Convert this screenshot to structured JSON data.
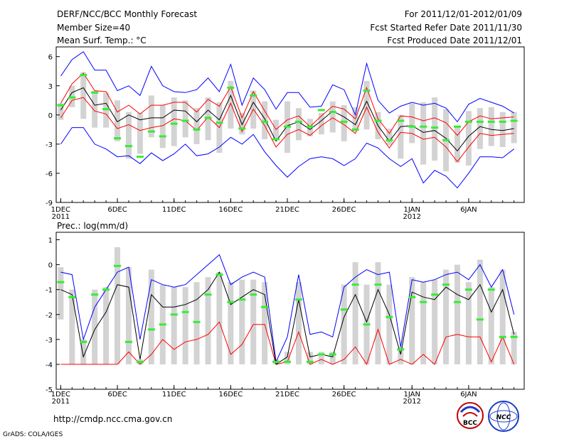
{
  "header": {
    "title": "DERF/NCC/BCC Monthly Forecast",
    "member_size": "Member Size=40",
    "variable": "Mean Surf. Temp.: °C",
    "period": "For 2011/12/01-2012/01/09",
    "fcst_started": "Fcst Started Refer Date 2011/11/30",
    "fcst_produced": "Fcst Produced Date 2011/12/01"
  },
  "footer": {
    "url": "http://cmdp.ncc.cma.gov.cn",
    "grads": "GrADS: COLA/IGES",
    "logo_bcc_text": "BCC",
    "logo_ncc_text": "NCC"
  },
  "colors": {
    "box": "#d3d3d3",
    "max": "#0000ff",
    "upper": "#ff0000",
    "mean": "#000000",
    "green": "#33ee33"
  },
  "chart_data": [
    {
      "type": "box-ensemble",
      "title": "Mean Surf. Temp.: °C",
      "ylim": [
        -9,
        7
      ],
      "yticks": [
        6,
        3,
        0,
        -3,
        -6,
        -9
      ],
      "xlabels": [
        {
          "day": 1,
          "label": "1DEC",
          "sub": "2011"
        },
        {
          "day": 6,
          "label": "6DEC"
        },
        {
          "day": 11,
          "label": "11DEC"
        },
        {
          "day": 16,
          "label": "16DEC"
        },
        {
          "day": 21,
          "label": "21DEC"
        },
        {
          "day": 26,
          "label": "26DEC"
        },
        {
          "day": 32,
          "label": "1JAN",
          "sub": "2012"
        },
        {
          "day": 37,
          "label": "6JAN"
        }
      ],
      "series": [
        {
          "name": "max",
          "values": [
            -3.0,
            -1.3,
            -1.3,
            -3.0,
            -3.5,
            -4.3,
            -4.2,
            -5.0,
            -3.9,
            -4.7,
            -4.0,
            -3.0,
            -4.2,
            -4.0,
            -3.3,
            -2.3,
            -3.0,
            -2.0,
            -3.8,
            -5.2,
            -6.4,
            -5.3,
            -4.5,
            -4.3,
            -4.5,
            -5.2,
            -4.5,
            -2.9,
            -3.4,
            -4.5,
            -5.3,
            -4.5,
            -7.0,
            -5.7,
            -6.3,
            -7.5,
            -6.0,
            -4.3,
            -4.3,
            -4.4,
            -3.5
          ]
        },
        {
          "name": "upper",
          "values": [
            -3.0,
            -1.3,
            -1.3,
            -3.0,
            -3.5,
            -4.3,
            -4.2,
            -5.0,
            -3.9,
            -4.7,
            -4.0,
            -3.0,
            -4.2,
            -4.0,
            -3.3,
            -2.3,
            -3.0,
            -2.0,
            -3.8,
            -5.2,
            -6.4,
            -5.3,
            -4.5,
            -4.3,
            -4.5,
            -5.2,
            -4.5,
            -2.9,
            -3.4,
            -4.5,
            -5.3,
            -4.5,
            -7.0,
            -5.7,
            -6.3,
            -7.5,
            -6.0,
            -4.3,
            -4.3,
            -4.4,
            -3.5
          ]
        },
        {
          "name": "blue_top",
          "values": [
            4.0,
            5.7,
            6.5,
            4.6,
            4.6,
            2.5,
            3.0,
            2.0,
            5.0,
            3.0,
            2.4,
            2.3,
            2.6,
            3.8,
            2.4,
            5.2,
            1.0,
            3.8,
            2.6,
            0.6,
            2.3,
            2.3,
            0.8,
            0.9,
            3.1,
            2.6,
            0.0,
            5.3,
            1.5,
            0.2,
            0.9,
            1.3,
            1.0,
            1.2,
            0.7,
            -0.7,
            1.1,
            1.7,
            1.3,
            0.9,
            0.2
          ]
        },
        {
          "name": "red_top",
          "values": [
            1.2,
            3.2,
            4.3,
            2.5,
            2.4,
            0.3,
            1.0,
            0.1,
            1.0,
            1.0,
            1.3,
            1.3,
            0.3,
            1.6,
            0.9,
            2.9,
            -0.3,
            2.4,
            0.4,
            -1.5,
            -0.5,
            -0.1,
            -1.2,
            -0.1,
            0.9,
            0.6,
            -0.4,
            2.8,
            -0.4,
            -1.9,
            -0.1,
            -0.2,
            -0.6,
            -0.3,
            -0.8,
            -2.1,
            -0.7,
            -0.1,
            -0.4,
            -0.3,
            -0.2
          ]
        },
        {
          "name": "mean",
          "values": [
            0.5,
            2.3,
            2.8,
            1.0,
            1.2,
            -0.7,
            0.0,
            -0.5,
            -0.3,
            -0.3,
            0.5,
            0.4,
            -0.7,
            0.5,
            -0.5,
            2.0,
            -1.0,
            1.3,
            -0.4,
            -2.7,
            -1.1,
            -0.7,
            -1.5,
            -0.6,
            0.4,
            -0.2,
            -1.0,
            1.4,
            -1.1,
            -2.7,
            -1.2,
            -1.1,
            -1.8,
            -1.6,
            -2.4,
            -3.7,
            -2.2,
            -1.2,
            -1.5,
            -1.6,
            -1.4
          ]
        },
        {
          "name": "red_bottom",
          "values": [
            -0.3,
            1.5,
            1.8,
            0.4,
            0.1,
            -1.4,
            -1.0,
            -1.6,
            -1.3,
            -1.1,
            -0.4,
            -0.6,
            -1.6,
            -0.2,
            -1.3,
            1.2,
            -1.7,
            0.6,
            -1.1,
            -3.3,
            -2.0,
            -1.5,
            -2.1,
            -1.1,
            -0.3,
            -1.0,
            -1.9,
            0.8,
            -1.8,
            -3.4,
            -1.8,
            -1.9,
            -2.5,
            -2.3,
            -3.3,
            -4.8,
            -3.3,
            -1.9,
            -2.1,
            -2.0,
            -1.9
          ]
        },
        {
          "name": "blue_bottom",
          "values": [
            -3.0,
            -1.3,
            -1.3,
            -3.0,
            -3.5,
            -4.3,
            -4.2,
            -5.0,
            -3.9,
            -4.7,
            -4.0,
            -3.0,
            -4.2,
            -4.0,
            -3.3,
            -2.3,
            -3.0,
            -2.0,
            -3.8,
            -5.2,
            -6.4,
            -5.3,
            -4.5,
            -4.3,
            -4.5,
            -5.2,
            -4.5,
            -2.9,
            -3.4,
            -4.5,
            -5.3,
            -4.5,
            -7.0,
            -5.7,
            -6.3,
            -7.5,
            -6.0,
            -4.3,
            -4.3,
            -4.4,
            -3.5
          ]
        },
        {
          "name": "box_top",
          "values": [
            1.2,
            3.0,
            4.4,
            2.5,
            2.3,
            1.5,
            0.3,
            0.2,
            2.0,
            1.0,
            1.8,
            1.5,
            0.7,
            1.8,
            1.3,
            3.5,
            0.2,
            2.5,
            1.4,
            -0.5,
            1.4,
            0.7,
            -0.4,
            0.2,
            1.4,
            1.0,
            0.8,
            3.5,
            0.3,
            -1.4,
            0.0,
            1.2,
            1.3,
            1.8,
            0.6,
            -1.2,
            0.4,
            0.7,
            0.8,
            0.3,
            0.3
          ]
        },
        {
          "name": "box_bottom",
          "values": [
            -0.5,
            0.8,
            -0.4,
            -1.3,
            -1.3,
            -2.7,
            -4.5,
            -4.0,
            -2.3,
            -3.4,
            -3.2,
            -2.3,
            -3.0,
            -2.6,
            -3.9,
            -1.4,
            -2.0,
            -1.4,
            -2.5,
            -2.6,
            -3.9,
            -2.6,
            -2.2,
            -2.0,
            -1.8,
            -2.7,
            -1.7,
            -1.5,
            -2.5,
            -3.1,
            -4.5,
            -2.9,
            -5.1,
            -4.7,
            -5.8,
            -4.9,
            -5.2,
            -3.5,
            -3.2,
            -3.3,
            -2.9
          ]
        },
        {
          "name": "observed",
          "values": [
            1.0,
            1.8,
            4.1,
            2.3,
            0.6,
            -2.4,
            -3.2,
            -4.3,
            -1.7,
            -2.2,
            -0.9,
            -0.6,
            -1.5,
            -0.3,
            -0.8,
            2.8,
            -1.4,
            2.0,
            -0.7,
            -2.5,
            -1.2,
            -0.7,
            -1.2,
            0.5,
            0.3,
            -0.7,
            -1.5,
            2.5,
            -0.6,
            -2.6,
            -0.6,
            -1.2,
            -1.2,
            -1.3,
            -2.6,
            -1.2,
            -0.7,
            -0.7,
            -0.7,
            -0.7,
            -0.6
          ]
        }
      ]
    },
    {
      "type": "box-ensemble",
      "title": "Prec.: log(mm/d)",
      "ylim": [
        -5,
        1.3
      ],
      "yticks": [
        1,
        0,
        -1,
        -2,
        -3,
        -4,
        -5
      ],
      "xlabels": [
        {
          "day": 1,
          "label": "1DEC",
          "sub": "2011"
        },
        {
          "day": 6,
          "label": "6DEC"
        },
        {
          "day": 11,
          "label": "11DEC"
        },
        {
          "day": 16,
          "label": "16DEC"
        },
        {
          "day": 21,
          "label": "21DEC"
        },
        {
          "day": 26,
          "label": "26DEC"
        },
        {
          "day": 32,
          "label": "1JAN",
          "sub": "2012"
        },
        {
          "day": 37,
          "label": "6JAN"
        }
      ],
      "series": [
        {
          "name": "blue_top",
          "values": [
            -0.3,
            -0.4,
            -3.0,
            -1.7,
            -1.0,
            -0.3,
            -0.1,
            -3.0,
            -0.6,
            -0.8,
            -0.9,
            -0.8,
            -0.4,
            0.0,
            0.4,
            -0.8,
            -0.5,
            -0.3,
            -0.5,
            -3.9,
            -2.9,
            -0.4,
            -2.8,
            -2.7,
            -2.9,
            -0.9,
            -0.5,
            -0.2,
            -0.4,
            -0.3,
            -3.3,
            -0.6,
            -0.7,
            -0.6,
            -0.4,
            -0.3,
            -0.6,
            0.0,
            -0.9,
            -0.2,
            -2.0
          ]
        },
        {
          "name": "mean",
          "values": [
            -1.0,
            -1.2,
            -3.7,
            -2.6,
            -1.9,
            -0.8,
            -0.9,
            -3.8,
            -1.2,
            -1.7,
            -1.7,
            -1.6,
            -1.4,
            -1.0,
            -0.3,
            -1.6,
            -1.3,
            -1.0,
            -1.2,
            -4.0,
            -3.7,
            -1.4,
            -3.7,
            -3.6,
            -3.7,
            -2.1,
            -1.2,
            -2.3,
            -1.0,
            -2.0,
            -3.6,
            -1.1,
            -1.3,
            -1.4,
            -0.9,
            -1.2,
            -1.4,
            -0.8,
            -1.9,
            -1.0,
            -2.8
          ]
        },
        {
          "name": "red",
          "values": [
            -4.0,
            -4.0,
            -4.0,
            -4.0,
            -4.0,
            -4.0,
            -3.5,
            -4.0,
            -3.6,
            -3.0,
            -3.4,
            -3.1,
            -3.0,
            -2.8,
            -2.3,
            -3.6,
            -3.2,
            -2.4,
            -2.4,
            -4.0,
            -3.9,
            -2.7,
            -4.0,
            -3.8,
            -4.0,
            -3.8,
            -3.3,
            -4.0,
            -2.6,
            -4.0,
            -3.8,
            -4.0,
            -3.6,
            -4.0,
            -2.9,
            -2.8,
            -2.9,
            -2.9,
            -3.9,
            -2.9,
            -4.0
          ]
        },
        {
          "name": "box_top",
          "values": [
            -0.1,
            -1.0,
            -3.0,
            -1.0,
            -0.9,
            0.7,
            -0.1,
            -3.8,
            -0.2,
            -0.8,
            -0.9,
            -0.9,
            -0.7,
            -0.5,
            -0.3,
            -0.7,
            -0.6,
            -0.6,
            -0.7,
            -3.8,
            -3.5,
            -0.7,
            -3.5,
            -3.5,
            -3.5,
            -0.8,
            0.1,
            -0.8,
            0.1,
            -0.8,
            -3.3,
            -0.5,
            -0.7,
            -0.6,
            -0.2,
            0.0,
            -0.7,
            0.2,
            -0.9,
            -0.2,
            -2.7
          ]
        },
        {
          "name": "box_bottom",
          "values": [
            -2.2,
            -4.0,
            -4.0,
            -4.0,
            -4.0,
            -4.0,
            -4.0,
            -4.0,
            -4.0,
            -4.0,
            -4.0,
            -4.0,
            -4.0,
            -4.0,
            -4.0,
            -4.0,
            -4.0,
            -4.0,
            -4.0,
            -4.0,
            -4.0,
            -4.0,
            -4.0,
            -4.0,
            -4.0,
            -4.0,
            -4.0,
            -4.0,
            -4.0,
            -4.0,
            -4.0,
            -4.0,
            -4.0,
            -4.0,
            -4.0,
            -4.0,
            -4.0,
            -4.0,
            -4.0,
            -4.0,
            -4.0
          ]
        },
        {
          "name": "observed",
          "values": [
            -0.7,
            -1.3,
            -3.1,
            -1.2,
            -1.0,
            -0.05,
            -3.1,
            -3.9,
            -2.6,
            -2.4,
            -2.0,
            -1.9,
            -2.3,
            -1.2,
            -0.4,
            -1.5,
            -1.4,
            -1.2,
            -1.7,
            -3.9,
            -3.9,
            -1.4,
            -3.9,
            -3.6,
            -3.6,
            -1.8,
            -0.8,
            -2.4,
            -0.8,
            -2.1,
            -3.4,
            -1.3,
            -1.5,
            -1.2,
            -0.8,
            -1.5,
            -1.0,
            -2.2,
            -1.0,
            -2.9,
            -2.9
          ]
        }
      ]
    }
  ]
}
